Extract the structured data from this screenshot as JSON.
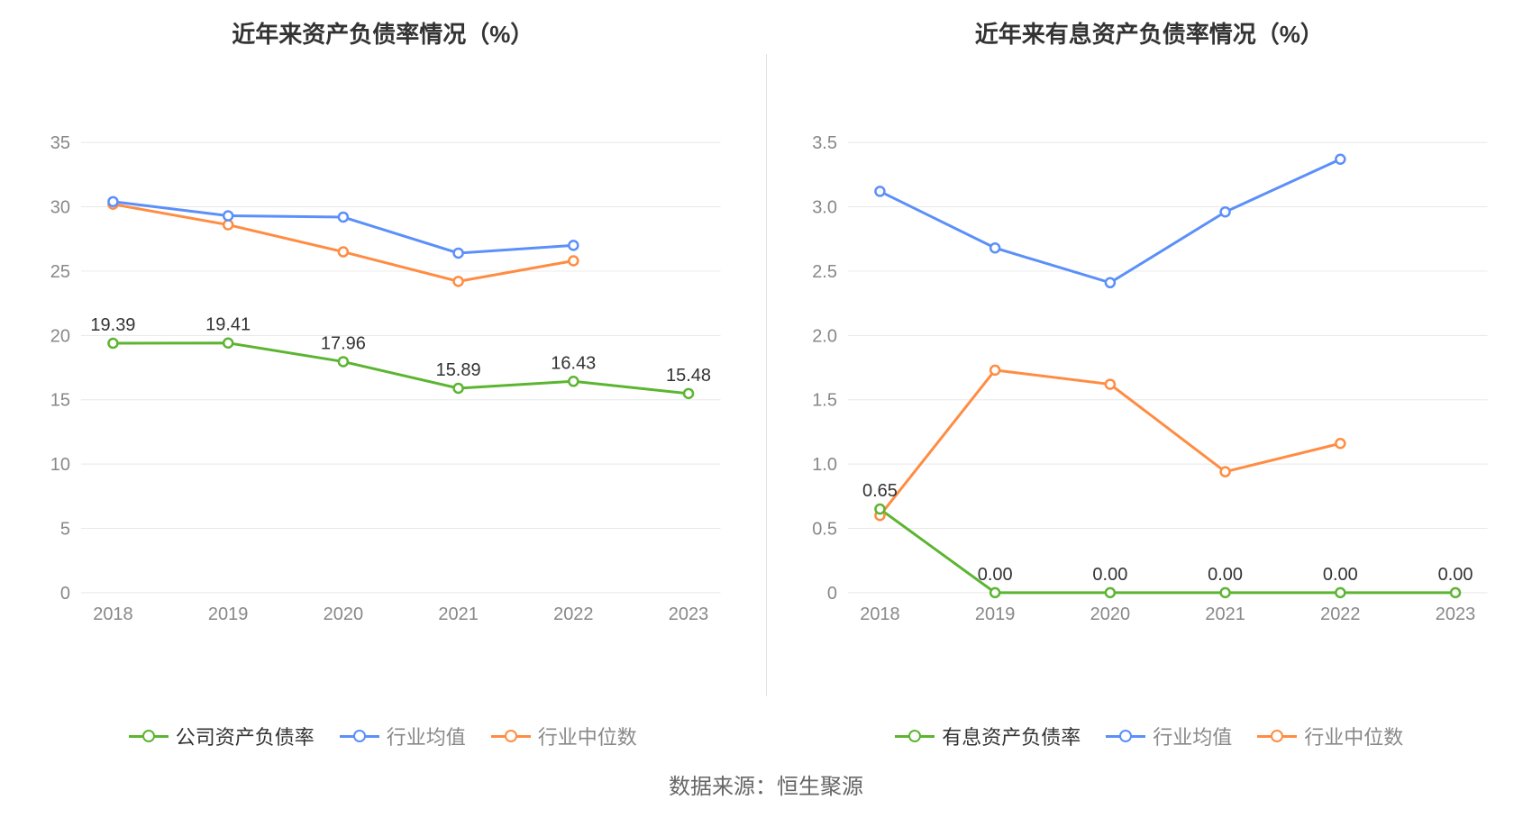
{
  "source_label": "数据来源：恒生聚源",
  "colors": {
    "green": "#5cb531",
    "blue": "#5b8ff9",
    "orange": "#ff8c42",
    "grid": "#e8e8e8",
    "axis_text": "#888888",
    "title_text": "#333333",
    "label_text": "#333333",
    "legend_inactive": "#888888",
    "background": "#ffffff"
  },
  "chart_left": {
    "type": "line",
    "title": "近年来资产负债率情况（%）",
    "categories": [
      "2018",
      "2019",
      "2020",
      "2021",
      "2022",
      "2023"
    ],
    "ylim": [
      0,
      35
    ],
    "ytick_step": 5,
    "title_fontsize": 26,
    "axis_fontsize": 20,
    "label_fontsize": 20,
    "line_width": 3,
    "marker_radius": 5,
    "series": [
      {
        "key": "company",
        "name": "公司资产负债率",
        "color": "#5cb531",
        "primary": true,
        "show_labels": true,
        "values": [
          19.39,
          19.41,
          17.96,
          15.89,
          16.43,
          15.48
        ],
        "labels": [
          "19.39",
          "19.41",
          "17.96",
          "15.89",
          "16.43",
          "15.48"
        ]
      },
      {
        "key": "industry_avg",
        "name": "行业均值",
        "color": "#5b8ff9",
        "primary": false,
        "show_labels": false,
        "values": [
          30.4,
          29.3,
          29.2,
          26.4,
          27.0,
          null
        ]
      },
      {
        "key": "industry_median",
        "name": "行业中位数",
        "color": "#ff8c42",
        "primary": false,
        "show_labels": false,
        "values": [
          30.2,
          28.6,
          26.5,
          24.2,
          25.8,
          null
        ]
      }
    ]
  },
  "chart_right": {
    "type": "line",
    "title": "近年来有息资产负债率情况（%）",
    "categories": [
      "2018",
      "2019",
      "2020",
      "2021",
      "2022",
      "2023"
    ],
    "ylim": [
      0,
      3.5
    ],
    "ytick_step": 0.5,
    "title_fontsize": 26,
    "axis_fontsize": 20,
    "label_fontsize": 20,
    "line_width": 3,
    "marker_radius": 5,
    "series": [
      {
        "key": "company",
        "name": "有息资产负债率",
        "color": "#5cb531",
        "primary": true,
        "show_labels": true,
        "values": [
          0.65,
          0.0,
          0.0,
          0.0,
          0.0,
          0.0
        ],
        "labels": [
          "0.65",
          "0.00",
          "0.00",
          "0.00",
          "0.00",
          "0.00"
        ]
      },
      {
        "key": "industry_avg",
        "name": "行业均值",
        "color": "#5b8ff9",
        "primary": false,
        "show_labels": false,
        "values": [
          3.12,
          2.68,
          2.41,
          2.96,
          3.37,
          null
        ]
      },
      {
        "key": "industry_median",
        "name": "行业中位数",
        "color": "#ff8c42",
        "primary": false,
        "show_labels": false,
        "values": [
          0.6,
          1.73,
          1.62,
          0.94,
          1.16,
          null
        ]
      }
    ]
  }
}
